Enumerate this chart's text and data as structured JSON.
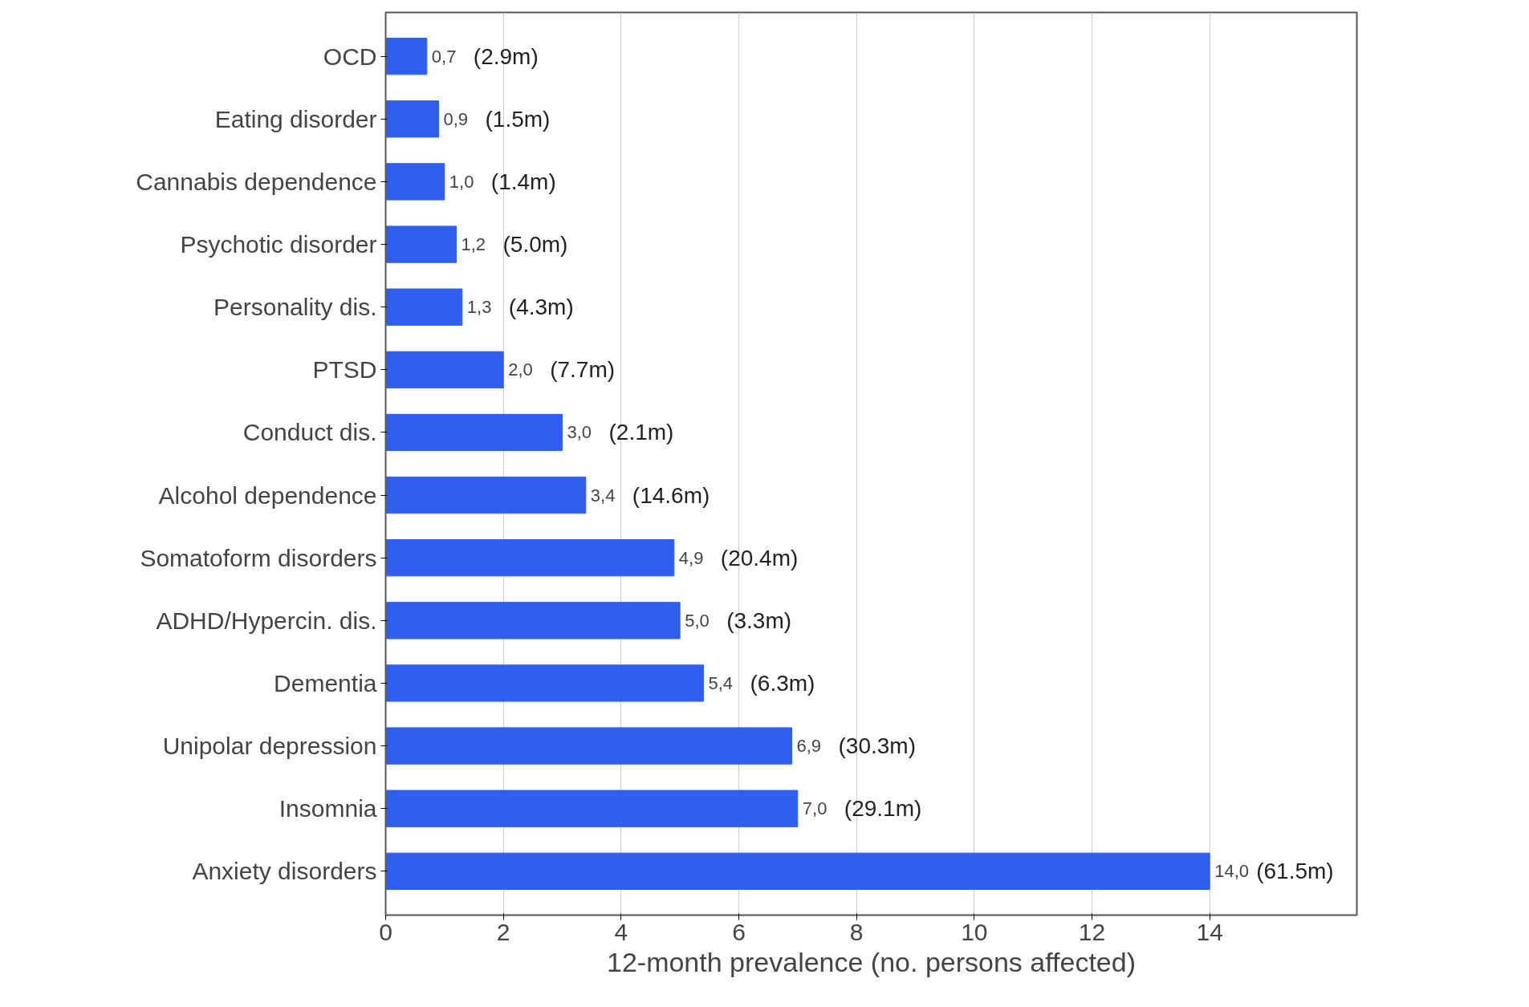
{
  "chart_data": {
    "type": "bar",
    "orientation": "horizontal",
    "xlabel": "12-month prevalence (no. persons affected)",
    "categories": [
      "OCD",
      "Eating disorder",
      "Cannabis dependence",
      "Psychotic disorder",
      "Personality dis.",
      "PTSD",
      "Conduct dis.",
      "Alcohol dependence",
      "Somatoform disorders",
      "ADHD/Hypercin. dis.",
      "Dementia",
      "Unipolar depression",
      "Insomnia",
      "Anxiety disorders"
    ],
    "values": [
      0.7,
      0.9,
      1.0,
      1.2,
      1.3,
      2.0,
      3.0,
      3.4,
      4.9,
      5.0,
      5.4,
      6.9,
      7.0,
      14.0
    ],
    "value_labels": [
      "0,7",
      "0,9",
      "1,0",
      "1,2",
      "1,3",
      "2,0",
      "3,0",
      "3,4",
      "4,9",
      "5,0",
      "5,4",
      "6,9",
      "7,0",
      "14,0"
    ],
    "color": "#2f5ff0",
    "xlim": [
      0,
      16.5
    ],
    "xticks": [
      0,
      2,
      4,
      6,
      8,
      10,
      12,
      14
    ],
    "grid": "x",
    "annotations": [
      {
        "text": "(2.9m)",
        "x": 0.7,
        "y": "OCD"
      },
      {
        "text": "(1.5m)",
        "x": 0.9,
        "y": "Eating disorder"
      },
      {
        "text": "(1.4m)",
        "x": 1.0,
        "y": "Cannabis dependence"
      },
      {
        "text": "(5.0m)",
        "x": 1.2,
        "y": "Psychotic disorder"
      },
      {
        "text": "(4.3m)",
        "x": 1.3,
        "y": "Personality dis."
      },
      {
        "text": "(7.7m)",
        "x": 2.0,
        "y": "PTSD"
      },
      {
        "text": "(2.1m)",
        "x": 3.0,
        "y": "Conduct dis."
      },
      {
        "text": "(14.6m)",
        "x": 3.4,
        "y": "Alcohol dependence"
      },
      {
        "text": "(20.4m)",
        "x": 4.9,
        "y": "Somatoform disorders"
      },
      {
        "text": "(3.3m)",
        "x": 5.0,
        "y": "ADHD/Hypercin. dis."
      },
      {
        "text": "(6.3m)",
        "x": 5.4,
        "y": "Dementia"
      },
      {
        "text": "(30.3m)",
        "x": 6.9,
        "y": "Unipolar depression"
      },
      {
        "text": "(29.1m)",
        "x": 7.0,
        "y": "Insomnia"
      },
      {
        "text": "(61.5m)",
        "x": 14.0,
        "y": "Anxiety disorders"
      }
    ]
  }
}
